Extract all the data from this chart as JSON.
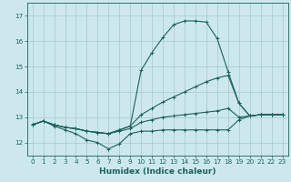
{
  "xlabel": "Humidex (Indice chaleur)",
  "bg_color": "#cde8ec",
  "line_color": "#1b6060",
  "grid_color": "#aacdd4",
  "xlim": [
    -0.5,
    23.5
  ],
  "ylim": [
    11.5,
    17.5
  ],
  "yticks": [
    12,
    13,
    14,
    15,
    16,
    17
  ],
  "xticks": [
    0,
    1,
    2,
    3,
    4,
    5,
    6,
    7,
    8,
    9,
    10,
    11,
    12,
    13,
    14,
    15,
    16,
    17,
    18,
    19,
    20,
    21,
    22,
    23
  ],
  "series": [
    {
      "x": [
        0,
        1,
        2,
        3,
        4,
        5,
        6,
        7,
        8,
        9,
        10,
        11,
        12,
        13,
        14,
        15,
        16,
        17,
        18,
        19,
        20,
        21,
        22,
        23
      ],
      "y": [
        12.7,
        12.85,
        12.65,
        12.5,
        12.35,
        12.1,
        12.0,
        11.75,
        11.95,
        12.35,
        12.45,
        12.45,
        12.5,
        12.5,
        12.5,
        12.5,
        12.5,
        12.5,
        12.5,
        12.9,
        13.05,
        13.1,
        13.1,
        13.1
      ]
    },
    {
      "x": [
        0,
        1,
        2,
        3,
        4,
        5,
        6,
        7,
        8,
        9,
        10,
        11,
        12,
        13,
        14,
        15,
        16,
        17,
        18,
        19,
        20,
        21,
        22,
        23
      ],
      "y": [
        12.7,
        12.85,
        12.7,
        12.6,
        12.55,
        12.45,
        12.4,
        12.35,
        12.45,
        12.55,
        12.8,
        12.9,
        13.0,
        13.05,
        13.1,
        13.15,
        13.2,
        13.25,
        13.35,
        13.0,
        13.05,
        13.1,
        13.1,
        13.1
      ]
    },
    {
      "x": [
        0,
        1,
        2,
        3,
        4,
        5,
        6,
        7,
        8,
        9,
        10,
        11,
        12,
        13,
        14,
        15,
        16,
        17,
        18,
        19,
        20,
        21,
        22,
        23
      ],
      "y": [
        12.7,
        12.85,
        12.7,
        12.6,
        12.55,
        12.45,
        12.4,
        12.35,
        12.5,
        12.65,
        13.1,
        13.35,
        13.6,
        13.8,
        14.0,
        14.2,
        14.4,
        14.55,
        14.65,
        13.55,
        13.05,
        13.1,
        13.1,
        13.1
      ]
    },
    {
      "x": [
        0,
        1,
        2,
        3,
        4,
        5,
        6,
        7,
        8,
        9,
        10,
        11,
        12,
        13,
        14,
        15,
        16,
        17,
        18,
        19,
        20,
        21,
        22,
        23
      ],
      "y": [
        12.7,
        12.85,
        12.7,
        12.6,
        12.55,
        12.45,
        12.4,
        12.35,
        12.5,
        12.65,
        14.85,
        15.55,
        16.15,
        16.65,
        16.8,
        16.8,
        16.75,
        16.1,
        14.8,
        13.55,
        13.05,
        13.1,
        13.1,
        13.1
      ]
    }
  ]
}
